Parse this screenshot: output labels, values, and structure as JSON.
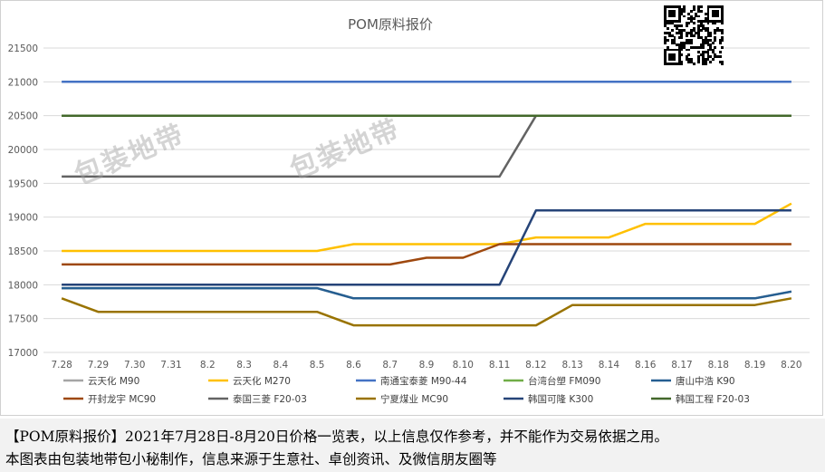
{
  "chart_data": {
    "type": "line",
    "title": "POM原料报价",
    "categories": [
      "7.28",
      "7.29",
      "7.30",
      "7.31",
      "8.2",
      "8.3",
      "8.4",
      "8.5",
      "8.6",
      "8.7",
      "8.9",
      "8.10",
      "8.11",
      "8.12",
      "8.13",
      "8.14",
      "8.16",
      "8.17",
      "8.18",
      "8.19",
      "8.20"
    ],
    "ylim": [
      17000,
      21500
    ],
    "yticks": [
      17000,
      17500,
      18000,
      18500,
      19000,
      19500,
      20000,
      20500,
      21000,
      21500
    ],
    "grid": true,
    "legend_position": "bottom",
    "series": [
      {
        "name": "云天化 M90",
        "color": "#a5a5a5",
        "values": [
          17950,
          17950,
          17950,
          17950,
          17950,
          17950,
          17950,
          17950,
          17800,
          17800,
          17800,
          17800,
          17800,
          17800,
          17800,
          17800,
          17800,
          17800,
          17800,
          17800,
          17900
        ]
      },
      {
        "name": "云天化 M270",
        "color": "#ffc000",
        "values": [
          18500,
          18500,
          18500,
          18500,
          18500,
          18500,
          18500,
          18500,
          18600,
          18600,
          18600,
          18600,
          18600,
          18700,
          18700,
          18700,
          18900,
          18900,
          18900,
          18900,
          19200
        ]
      },
      {
        "name": "南通宝泰菱 M90-44",
        "color": "#4472c4",
        "values": [
          21000,
          21000,
          21000,
          21000,
          21000,
          21000,
          21000,
          21000,
          21000,
          21000,
          21000,
          21000,
          21000,
          21000,
          21000,
          21000,
          21000,
          21000,
          21000,
          21000,
          21000
        ]
      },
      {
        "name": "台湾台塑 FM090",
        "color": "#70ad47",
        "values": [
          20500,
          20500,
          20500,
          20500,
          20500,
          20500,
          20500,
          20500,
          20500,
          20500,
          20500,
          20500,
          20500,
          20500,
          20500,
          20500,
          20500,
          20500,
          20500,
          20500,
          20500
        ]
      },
      {
        "name": "唐山中浩 K90",
        "color": "#255e91",
        "values": [
          17950,
          17950,
          17950,
          17950,
          17950,
          17950,
          17950,
          17950,
          17800,
          17800,
          17800,
          17800,
          17800,
          17800,
          17800,
          17800,
          17800,
          17800,
          17800,
          17800,
          17900
        ]
      },
      {
        "name": "开封龙宇 MC90",
        "color": "#9e480e",
        "values": [
          18300,
          18300,
          18300,
          18300,
          18300,
          18300,
          18300,
          18300,
          18300,
          18300,
          18400,
          18400,
          18600,
          18600,
          18600,
          18600,
          18600,
          18600,
          18600,
          18600,
          18600
        ]
      },
      {
        "name": "泰国三菱 F20-03",
        "color": "#636363",
        "values": [
          19600,
          19600,
          19600,
          19600,
          19600,
          19600,
          19600,
          19600,
          19600,
          19600,
          19600,
          19600,
          19600,
          20500,
          20500,
          20500,
          20500,
          20500,
          20500,
          20500,
          20500
        ]
      },
      {
        "name": "宁夏煤业 MC90",
        "color": "#997300",
        "values": [
          17800,
          17600,
          17600,
          17600,
          17600,
          17600,
          17600,
          17600,
          17400,
          17400,
          17400,
          17400,
          17400,
          17400,
          17700,
          17700,
          17700,
          17700,
          17700,
          17700,
          17800
        ]
      },
      {
        "name": "韩国可隆 K300",
        "color": "#264478",
        "values": [
          18000,
          18000,
          18000,
          18000,
          18000,
          18000,
          18000,
          18000,
          18000,
          18000,
          18000,
          18000,
          18000,
          19100,
          19100,
          19100,
          19100,
          19100,
          19100,
          19100,
          19100
        ]
      },
      {
        "name": "韩国工程 F20-03",
        "color": "#43682b",
        "values": [
          20500,
          20500,
          20500,
          20500,
          20500,
          20500,
          20500,
          20500,
          20500,
          20500,
          20500,
          20500,
          20500,
          20500,
          20500,
          20500,
          20500,
          20500,
          20500,
          20500,
          20500
        ]
      }
    ]
  },
  "watermark": "包装地带",
  "caption": {
    "line1": "【POM原料报价】2021年7月28日-8月20日价格一览表，以上信息仅作参考，并不能作为交易依据之用。",
    "line2": "本图表由包装地带包小秘制作，信息来源于生意社、卓创资讯、及微信朋友圈等"
  }
}
